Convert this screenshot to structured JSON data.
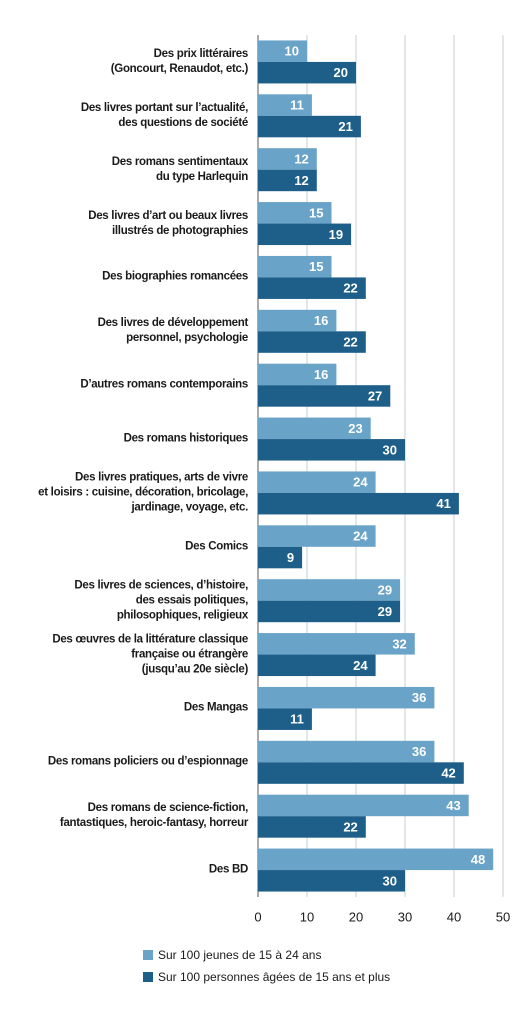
{
  "chart_data": {
    "type": "bar",
    "orientation": "horizontal",
    "categories": [
      "Des prix littéraires\n(Goncourt, Renaudot, etc.)",
      "Des livres portant sur l’actualité,\ndes questions de société",
      "Des romans sentimentaux\ndu type Harlequin",
      "Des livres d’art ou beaux livres\nillustrés de photographies",
      "Des biographies romancées",
      "Des livres de développement\npersonnel, psychologie",
      "D’autres romans contemporains",
      "Des romans historiques",
      "Des livres pratiques, arts de vivre\net loisirs : cuisine, décoration, bricolage,\njardinage, voyage, etc.",
      "Des Comics",
      "Des livres de sciences, d’histoire,\ndes essais politiques,\nphilosophiques, religieux",
      "Des œuvres de la littérature classique\nfrançaise ou étrangère\n(jusqu’au 20e siècle)",
      "Des Mangas",
      "Des romans policiers ou d’espionnage",
      "Des romans de science-fiction,\nfantastiques, heroic-fantasy, horreur",
      "Des BD"
    ],
    "series": [
      {
        "name": "Sur 100 jeunes de 15 à 24 ans",
        "color": "#6aa3c8",
        "values": [
          10,
          11,
          12,
          15,
          15,
          16,
          16,
          23,
          24,
          24,
          29,
          32,
          36,
          36,
          43,
          48
        ]
      },
      {
        "name": "Sur 100 personnes âgées de 15 ans et plus",
        "color": "#1e5f8a",
        "values": [
          20,
          21,
          12,
          19,
          22,
          22,
          27,
          30,
          41,
          9,
          29,
          24,
          11,
          42,
          22,
          30
        ]
      }
    ],
    "xlim": [
      0,
      50
    ],
    "xticks": [
      0,
      10,
      20,
      30,
      40,
      50
    ],
    "grid": true
  }
}
